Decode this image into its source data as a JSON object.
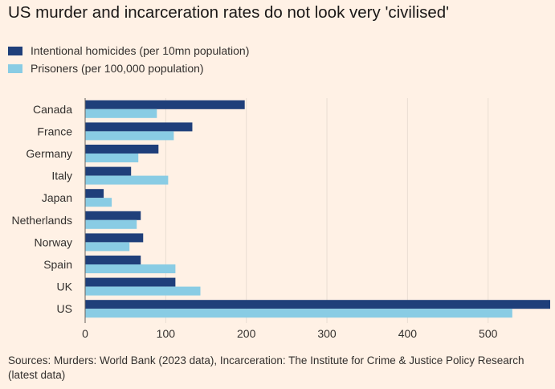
{
  "title": "US murder and incarceration rates do not look very 'civilised'",
  "source": "Sources: Murders: World Bank (2023 data), Incarceration: The Institute for Crime & Justice Policy Research (latest data)",
  "chart_data": {
    "type": "bar",
    "orientation": "horizontal",
    "categories": [
      "Canada",
      "France",
      "Germany",
      "Italy",
      "Japan",
      "Netherlands",
      "Norway",
      "Spain",
      "UK",
      "US"
    ],
    "series": [
      {
        "name": "Intentional homicides (per 10mn population)",
        "color": "#1f3f7a",
        "values": [
          198,
          133,
          91,
          57,
          23,
          69,
          72,
          69,
          112,
          577
        ]
      },
      {
        "name": "Prisoners (per 100,000 population)",
        "color": "#89cce4",
        "values": [
          89,
          110,
          66,
          103,
          33,
          64,
          55,
          112,
          143,
          530
        ]
      }
    ],
    "xticks": [
      0,
      100,
      200,
      300,
      400,
      500
    ],
    "xlim": [
      0,
      577
    ],
    "grid": "vertical",
    "legend": "top-left"
  }
}
